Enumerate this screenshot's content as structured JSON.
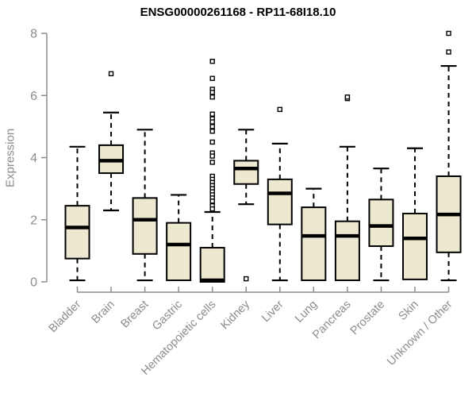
{
  "chart_data": {
    "type": "boxplot",
    "title": "ENSG00000261168 - RP11-68I18.10",
    "ylabel": "Expression",
    "xlabel": "",
    "ylim": [
      0,
      8.2
    ],
    "yticks": [
      0,
      2,
      4,
      6,
      8
    ],
    "grid": false,
    "legend": "none",
    "categories": [
      "Bladder",
      "Brain",
      "Breast",
      "Gastric",
      "Hematopoietic cells",
      "Kidney",
      "Liver",
      "Lung",
      "Pancreas",
      "Prostate",
      "Skin",
      "Unknown / Other"
    ],
    "boxes": [
      {
        "category": "Bladder",
        "whisker_low": 0.05,
        "q1": 0.75,
        "median": 1.75,
        "q3": 2.45,
        "whisker_high": 4.35,
        "outliers": []
      },
      {
        "category": "Brain",
        "whisker_low": 2.3,
        "q1": 3.5,
        "median": 3.9,
        "q3": 4.4,
        "whisker_high": 5.45,
        "outliers": [
          6.7
        ]
      },
      {
        "category": "Breast",
        "whisker_low": 0.05,
        "q1": 0.9,
        "median": 2.0,
        "q3": 2.7,
        "whisker_high": 4.9,
        "outliers": []
      },
      {
        "category": "Gastric",
        "whisker_low": 0.05,
        "q1": 0.05,
        "median": 1.2,
        "q3": 1.9,
        "whisker_high": 2.8,
        "outliers": []
      },
      {
        "category": "Hematopoietic cells",
        "whisker_low": 0.0,
        "q1": 0.0,
        "median": 0.05,
        "q3": 1.1,
        "whisker_high": 2.25,
        "outliers": [
          7.1,
          6.55,
          6.2,
          6.1,
          5.95,
          5.4,
          5.25,
          5.15,
          5.0,
          4.85,
          4.5,
          4.15,
          4.05,
          3.85,
          3.4,
          3.3,
          3.2,
          3.1,
          3.0,
          2.9,
          2.8,
          2.7,
          2.6,
          2.45,
          2.35
        ]
      },
      {
        "category": "Kidney",
        "whisker_low": 2.5,
        "q1": 3.15,
        "median": 3.65,
        "q3": 3.9,
        "whisker_high": 4.9,
        "outliers": [
          0.1
        ]
      },
      {
        "category": "Liver",
        "whisker_low": 0.05,
        "q1": 1.85,
        "median": 2.85,
        "q3": 3.3,
        "whisker_high": 4.45,
        "outliers": [
          5.55
        ]
      },
      {
        "category": "Lung",
        "whisker_low": 0.05,
        "q1": 0.05,
        "median": 1.48,
        "q3": 2.4,
        "whisker_high": 3.0,
        "outliers": []
      },
      {
        "category": "Pancreas",
        "whisker_low": 0.05,
        "q1": 0.05,
        "median": 1.48,
        "q3": 1.95,
        "whisker_high": 4.35,
        "outliers": [
          5.9,
          5.95
        ]
      },
      {
        "category": "Prostate",
        "whisker_low": 0.05,
        "q1": 1.15,
        "median": 1.8,
        "q3": 2.65,
        "whisker_high": 3.65,
        "outliers": []
      },
      {
        "category": "Skin",
        "whisker_low": 0.08,
        "q1": 0.08,
        "median": 1.4,
        "q3": 2.2,
        "whisker_high": 4.3,
        "outliers": []
      },
      {
        "category": "Unknown / Other",
        "whisker_low": 0.05,
        "q1": 0.95,
        "median": 2.17,
        "q3": 3.4,
        "whisker_high": 6.95,
        "outliers": [
          7.4,
          8.0
        ]
      }
    ],
    "colors": {
      "box_fill": "#ede8d0",
      "box_stroke": "#000000",
      "median": "#000000",
      "axis": "#8c8c8c",
      "tick_label": "#8c8c8c",
      "title": "#000000",
      "background": "#ffffff"
    }
  }
}
